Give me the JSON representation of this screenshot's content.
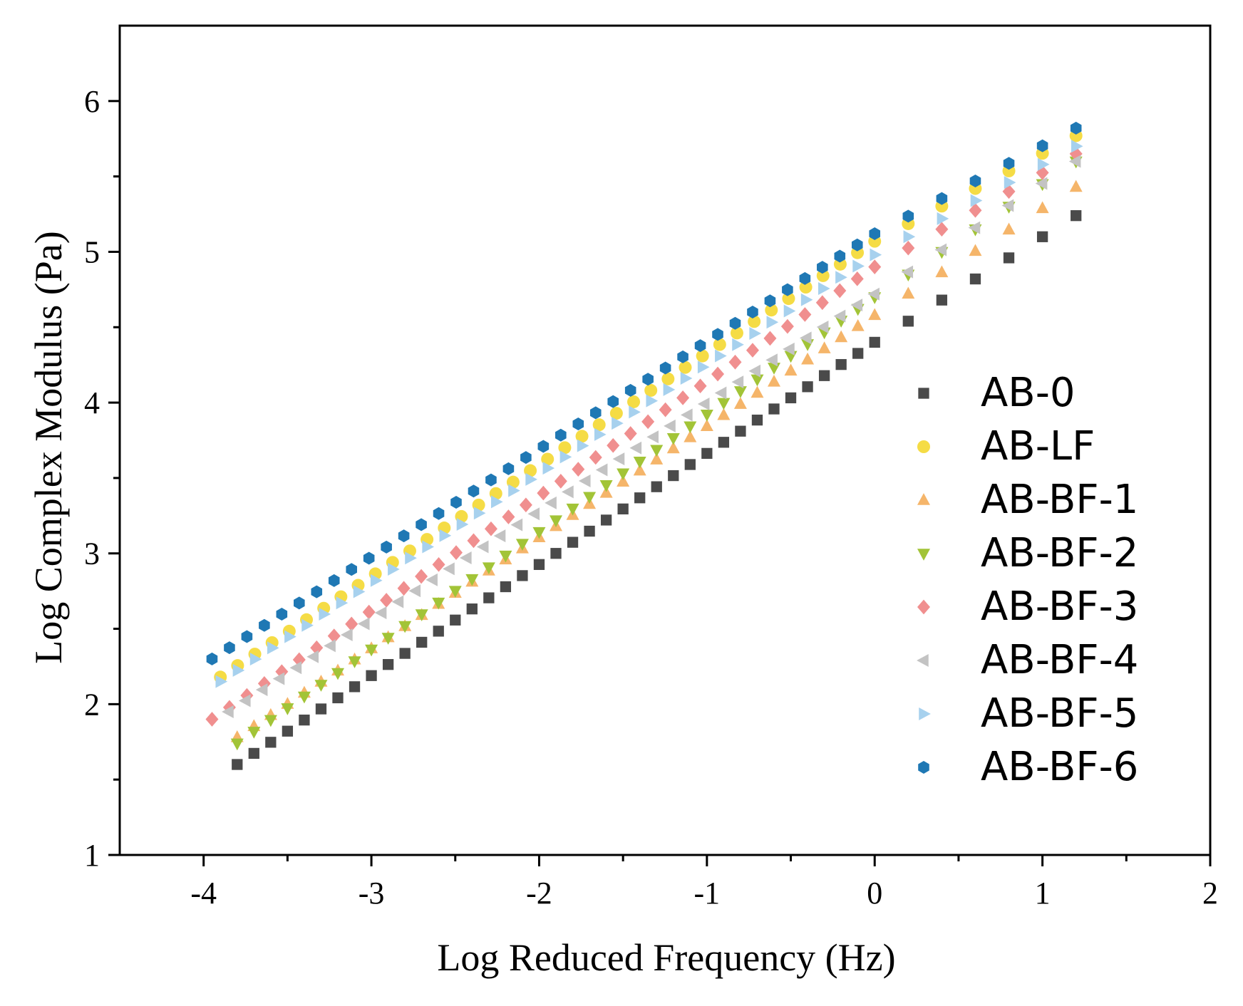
{
  "chart_data": {
    "type": "scatter",
    "title": "",
    "xlabel": "Log Reduced Frequency (Hz)",
    "ylabel": "Log Complex Modulus (Pa)",
    "xlim": [
      -4.5,
      2
    ],
    "ylim": [
      1,
      6.5
    ],
    "xticks": [
      -4,
      -3,
      -2,
      -1,
      0,
      1,
      2
    ],
    "xtick_labels": [
      "-4",
      "-3",
      "-2",
      "-1",
      "0",
      "1",
      "2"
    ],
    "yticks": [
      1,
      2,
      3,
      4,
      5,
      6
    ],
    "ytick_labels": [
      "1",
      "2",
      "3",
      "4",
      "5",
      "6"
    ],
    "grid": false,
    "legend_position": "right-lower",
    "sampling": {
      "x_segments": [
        {
          "start": -3.8,
          "end": 0,
          "count": 39
        },
        {
          "start": 0.2,
          "end": 1.2,
          "count": 6
        }
      ]
    },
    "series": [
      {
        "name": "AB-0",
        "marker": "square",
        "color": "#4a4a4a",
        "x_start": -3.8,
        "y_start": 1.6,
        "y_at_0": 4.4,
        "y_end": 5.24
      },
      {
        "name": "AB-LF",
        "marker": "circle",
        "color": "#f5dc45",
        "x_start": -3.9,
        "y_start": 2.18,
        "y_at_0": 5.07,
        "y_end": 5.77
      },
      {
        "name": "AB-BF-1",
        "marker": "triangle-up",
        "color": "#f5b56a",
        "x_start": -3.8,
        "y_start": 1.78,
        "y_at_0": 4.58,
        "y_end": 5.43
      },
      {
        "name": "AB-BF-2",
        "marker": "triangle-down",
        "color": "#a2c437",
        "x_start": -3.8,
        "y_start": 1.74,
        "y_at_0": 4.7,
        "y_end": 5.6
      },
      {
        "name": "AB-BF-3",
        "marker": "diamond",
        "color": "#f08f8f",
        "x_start": -3.95,
        "y_start": 1.9,
        "y_at_0": 4.9,
        "y_end": 5.65
      },
      {
        "name": "AB-BF-4",
        "marker": "triangle-left",
        "color": "#c3c3c3",
        "x_start": -3.85,
        "y_start": 1.95,
        "y_at_0": 4.72,
        "y_end": 5.6
      },
      {
        "name": "AB-BF-5",
        "marker": "triangle-right",
        "color": "#a7d1ee",
        "x_start": -3.9,
        "y_start": 2.15,
        "y_at_0": 4.98,
        "y_end": 5.7
      },
      {
        "name": "AB-BF-6",
        "marker": "hexagon",
        "color": "#1f78b4",
        "x_start": -3.95,
        "y_start": 2.3,
        "y_at_0": 5.12,
        "y_end": 5.82
      }
    ]
  }
}
